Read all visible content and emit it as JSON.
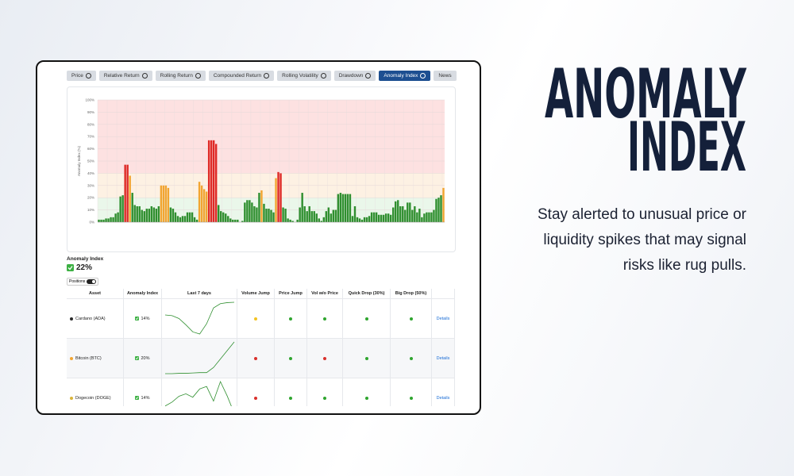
{
  "hero": {
    "title_lines": [
      "ANOMALY",
      "INDEX"
    ],
    "body_lines": [
      "Stay alerted to unusual price or",
      "liquidity spikes that may signal",
      "risks like rug pulls."
    ]
  },
  "tabs": [
    {
      "label": "Price",
      "info": true
    },
    {
      "label": "Relative Return",
      "info": true
    },
    {
      "label": "Rolling Return",
      "info": true
    },
    {
      "label": "Compounded Return",
      "info": true
    },
    {
      "label": "Rolling Volatility",
      "info": true
    },
    {
      "label": "Drawdown",
      "info": true
    },
    {
      "label": "Anomaly Index",
      "info": true,
      "active": true
    },
    {
      "label": "News",
      "info": false
    }
  ],
  "chart_data": {
    "type": "bar",
    "ylabel": "Anomaly Index (%)",
    "values": [
      2,
      2,
      2,
      3,
      3,
      4,
      4,
      7,
      8,
      21,
      22,
      47,
      47,
      38,
      24,
      14,
      13,
      13,
      10,
      9,
      11,
      11,
      13,
      12,
      11,
      13,
      30,
      30,
      30,
      28,
      12,
      11,
      8,
      5,
      4,
      5,
      5,
      8,
      8,
      8,
      4,
      2,
      33,
      30,
      27,
      25,
      67,
      67,
      67,
      64,
      14,
      9,
      8,
      7,
      5,
      3,
      2,
      2,
      2,
      0,
      1,
      16,
      18,
      18,
      16,
      13,
      12,
      24,
      26,
      15,
      11,
      11,
      10,
      8,
      36,
      41,
      40,
      12,
      11,
      3,
      2,
      1,
      0,
      2,
      12,
      24,
      13,
      9,
      13,
      9,
      9,
      7,
      3,
      1,
      4,
      9,
      12,
      7,
      10,
      10,
      23,
      24,
      23,
      23,
      23,
      23,
      5,
      13,
      4,
      3,
      2,
      4,
      4,
      5,
      8,
      8,
      8,
      6,
      6,
      6,
      7,
      7,
      6,
      12,
      17,
      18,
      13,
      13,
      10,
      16,
      16,
      10,
      13,
      8,
      11,
      4,
      7,
      8,
      8,
      8,
      10,
      19,
      20,
      22,
      28
    ],
    "ylim": [
      0,
      100
    ],
    "yticks": [
      {
        "value": 0,
        "label": "0%"
      },
      {
        "value": 10,
        "label": "10%"
      },
      {
        "value": 20,
        "label": "20%"
      },
      {
        "value": 30,
        "label": "30%"
      },
      {
        "value": 40,
        "label": "40%"
      },
      {
        "value": 50,
        "label": "50%"
      },
      {
        "value": 60,
        "label": "60%"
      },
      {
        "value": 70,
        "label": "70%"
      },
      {
        "value": 80,
        "label": "80%"
      },
      {
        "value": 90,
        "label": "90%"
      },
      {
        "value": 100,
        "label": "100%"
      }
    ],
    "grid": true,
    "bands": [
      {
        "from": 0,
        "to": 20,
        "color": "#eaf7ea"
      },
      {
        "from": 20,
        "to": 40,
        "color": "#fdf1e3"
      },
      {
        "from": 40,
        "to": 100,
        "color": "#fde1e1"
      }
    ],
    "bar_colors": [
      {
        "min": 0,
        "color": "#2f8f2f"
      },
      {
        "min": 25,
        "color": "#f2a531"
      },
      {
        "min": 40,
        "color": "#df2a26"
      }
    ]
  },
  "summary": {
    "label": "Anomaly Index",
    "value": "22%",
    "toggle_label": "Positions"
  },
  "table": {
    "columns": [
      "Asset",
      "Anomaly Index",
      "Last 7 days",
      "Volume Jump",
      "Price Jump",
      "Vol w/o Price",
      "Quick Drop (30%)",
      "Big Drop (50%)"
    ],
    "rows": [
      {
        "asset": "Cardano (ADA)",
        "dot_color": "#2b2b2b",
        "index": "14%",
        "sparkline": [
          60,
          58,
          50,
          32,
          12,
          6,
          35,
          80,
          92,
          95,
          96
        ],
        "signals": [
          "#f2c322",
          "#2fa52f",
          "#2fa52f",
          "#2fa52f",
          "#2fa52f"
        ],
        "action": "Details"
      },
      {
        "asset": "Bitcoin (BTC)",
        "dot_color": "#f2a531",
        "index": "20%",
        "sparkline": [
          2,
          2,
          3,
          3,
          4,
          5,
          5,
          20,
          45,
          70,
          95
        ],
        "signals": [
          "#d9302c",
          "#2fa52f",
          "#d9302c",
          "#2fa52f",
          "#2fa52f"
        ],
        "action": "Details"
      },
      {
        "asset": "Dogecoin (DOGE)",
        "dot_color": "#d9b43a",
        "index": "14%",
        "sparkline": [
          20,
          28,
          40,
          45,
          38,
          55,
          60,
          30,
          70,
          40,
          5
        ],
        "signals": [
          "#d9302c",
          "#2fa52f",
          "#2fa52f",
          "#2fa52f",
          "#2fa52f"
        ],
        "action": "Details"
      }
    ]
  }
}
